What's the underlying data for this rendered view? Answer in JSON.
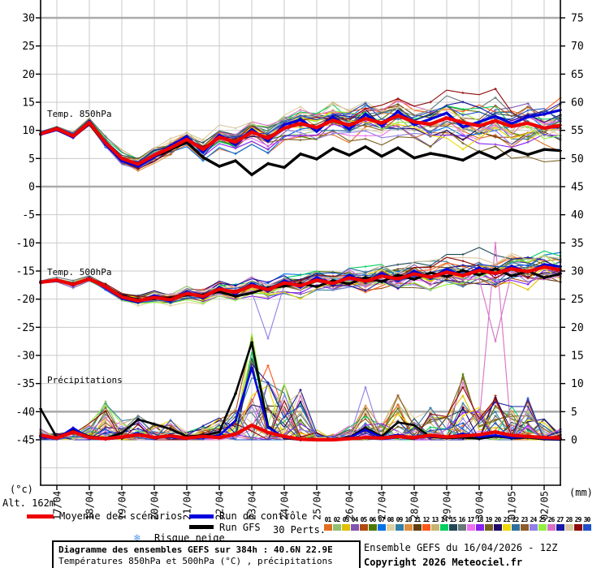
{
  "meta": {
    "altitude_label": "Alt. 162m",
    "footer_box_title": "Diagramme des ensembles GEFS sur 384h : 40.6N 22.9E",
    "footer_box_subtitle": "Températures 850hPa et 500hPa (°C) , précipitations (mm)",
    "footer_run_info": "Ensemble GEFS du 16/04/2026 - 12Z",
    "footer_copyright": "Copyright 2026 Meteociel.fr"
  },
  "panels": {
    "temp850_label": "Temp. 850hPa",
    "temp500_label": "Temp. 500hPa",
    "precip_label": "Précipitations"
  },
  "axes": {
    "left_unit": "(°c)",
    "right_unit": "(mm)"
  },
  "legend": {
    "mean_label": "Moyenne des scénarios",
    "control_label": "Run de contrôle",
    "gfs_label": "Run GFS",
    "perts_label": "30 Perts.",
    "snow_label": "Risque neige",
    "snow_icon": "❄",
    "mean_color": "#ee0000",
    "control_color": "#0000dd",
    "gfs_color": "#000000"
  },
  "perturbations": {
    "numbers": [
      "01",
      "02",
      "03",
      "04",
      "05",
      "06",
      "07",
      "08",
      "09",
      "10",
      "11",
      "12",
      "13",
      "14",
      "15",
      "16",
      "17",
      "18",
      "19",
      "20",
      "21",
      "22",
      "23",
      "24",
      "25",
      "26",
      "27",
      "28",
      "29",
      "30"
    ],
    "colors": [
      "#e07020",
      "#90c070",
      "#e0c000",
      "#8055b0",
      "#b04a10",
      "#507800",
      "#0070e8",
      "#e0d0a0",
      "#3080a8",
      "#e09040",
      "#604010",
      "#ff5818",
      "#c8b470",
      "#00d060",
      "#204858",
      "#667878",
      "#ee70ee",
      "#8820f0",
      "#786020",
      "#200868",
      "#eed800",
      "#3070a0",
      "#905c28",
      "#9080e8",
      "#90f040",
      "#d870c8",
      "#1818a8",
      "#d8c8a0",
      "#900808",
      "#2050c8"
    ]
  },
  "chart_data": {
    "type": "line",
    "title": "Diagramme des ensembles GEFS sur 384h : 40.6N 22.9E",
    "x_hours_step": 12,
    "x_hours_max": 384,
    "x_tick_labels": [
      "17/04",
      "18/04",
      "19/04",
      "20/04",
      "21/04",
      "22/04",
      "23/04",
      "24/04",
      "25/04",
      "26/04",
      "27/04",
      "28/04",
      "29/04",
      "30/04",
      "01/05",
      "02/05"
    ],
    "left_axis": {
      "label": "(°c)",
      "ticks": [
        30,
        25,
        20,
        15,
        10,
        5,
        0,
        -5,
        -10,
        -15,
        -20,
        -25,
        -30,
        -35,
        -40,
        -45
      ],
      "range": [
        -52,
        30
      ]
    },
    "right_axis": {
      "label": "(mm)",
      "ticks": [
        75,
        70,
        65,
        60,
        55,
        50,
        45,
        40,
        35,
        30,
        25,
        20,
        15,
        10,
        5,
        0
      ],
      "range": [
        0,
        75
      ]
    },
    "grid": {
      "vertical_every_hours": 24,
      "horizontal_every_units": 5,
      "emphasized_values": [
        30,
        0,
        -40
      ]
    },
    "legend_position": "bottom",
    "series": {
      "mean_850": [
        9.4,
        10.3,
        9.0,
        11.4,
        7.8,
        5.0,
        4.0,
        5.6,
        6.9,
        8.4,
        6.6,
        8.8,
        7.9,
        9.7,
        8.6,
        10.4,
        11.2,
        10.5,
        11.8,
        10.9,
        12.1,
        11.3,
        12.6,
        11.5,
        11.1,
        12.2,
        11.4,
        10.8,
        11.7,
        10.7,
        11.3,
        10.4,
        10.9
      ],
      "control_850": [
        9.3,
        10.1,
        8.8,
        11.6,
        7.5,
        4.6,
        3.6,
        5.2,
        7.3,
        8.9,
        6.1,
        9.2,
        7.4,
        10.2,
        8.1,
        11.0,
        11.9,
        9.8,
        12.4,
        10.2,
        12.9,
        10.8,
        13.4,
        11.0,
        12.0,
        13.1,
        10.6,
        11.5,
        12.5,
        11.2,
        12.4,
        12.9,
        13.6
      ],
      "gfs_850": [
        9.4,
        10.4,
        8.9,
        11.2,
        7.6,
        4.8,
        3.9,
        5.3,
        6.6,
        7.9,
        5.2,
        3.6,
        4.6,
        2.1,
        4.1,
        3.4,
        5.8,
        4.9,
        6.8,
        5.6,
        7.1,
        5.4,
        6.9,
        5.1,
        5.9,
        5.4,
        4.7,
        6.2,
        5.0,
        6.6,
        5.7,
        6.6,
        6.4
      ],
      "mean_500": [
        -17.0,
        -16.6,
        -17.4,
        -16.4,
        -17.8,
        -19.6,
        -20.3,
        -19.7,
        -20.1,
        -19.0,
        -19.5,
        -18.2,
        -18.8,
        -17.6,
        -18.3,
        -17.1,
        -17.6,
        -16.6,
        -17.2,
        -16.2,
        -16.8,
        -15.9,
        -16.4,
        -15.5,
        -16.1,
        -15.2,
        -15.8,
        -14.9,
        -15.4,
        -14.6,
        -15.1,
        -14.3,
        -14.8
      ],
      "control_500": [
        -17.1,
        -16.5,
        -17.6,
        -16.2,
        -18.0,
        -19.9,
        -20.6,
        -19.4,
        -20.4,
        -18.7,
        -19.8,
        -17.9,
        -19.1,
        -17.2,
        -18.6,
        -16.7,
        -17.9,
        -16.1,
        -17.5,
        -15.7,
        -17.0,
        -15.4,
        -16.6,
        -15.0,
        -16.3,
        -14.7,
        -15.9,
        -14.4,
        -15.6,
        -14.1,
        -15.2,
        -13.8,
        -14.2
      ],
      "gfs_500": [
        -17.0,
        -16.7,
        -17.3,
        -16.5,
        -17.7,
        -19.4,
        -20.1,
        -19.9,
        -19.8,
        -19.3,
        -19.2,
        -18.7,
        -19.5,
        -18.9,
        -18.0,
        -17.7,
        -17.2,
        -17.8,
        -16.7,
        -17.3,
        -16.1,
        -16.9,
        -15.7,
        -16.5,
        -15.3,
        -16.0,
        -14.9,
        -15.7,
        -14.6,
        -15.9,
        -15.0,
        -16.2,
        -15.5
      ],
      "mean_precip": [
        0.8,
        0.3,
        1.4,
        0.4,
        0.2,
        0.5,
        0.9,
        0.4,
        0.7,
        0.3,
        0.6,
        0.4,
        1.0,
        2.6,
        1.3,
        0.6,
        0.1,
        0.0,
        0.0,
        0.2,
        0.4,
        0.3,
        0.6,
        0.4,
        0.8,
        0.5,
        0.7,
        0.9,
        1.4,
        0.8,
        0.6,
        0.4,
        0.3
      ],
      "control_precip": [
        0.5,
        0.2,
        2.1,
        0.3,
        0.1,
        0.4,
        1.2,
        0.3,
        0.5,
        0.2,
        0.4,
        0.8,
        3.4,
        12.8,
        2.2,
        0.4,
        0.0,
        0.0,
        0.1,
        0.3,
        1.8,
        0.4,
        0.9,
        0.3,
        0.6,
        0.4,
        1.1,
        0.5,
        0.8,
        0.4,
        0.5,
        0.2,
        0.1
      ],
      "gfs_precip": [
        5.5,
        0.4,
        1.8,
        0.6,
        0.3,
        1.2,
        3.6,
        2.8,
        1.9,
        0.6,
        0.8,
        1.4,
        8.2,
        17.3,
        2.4,
        0.3,
        0.0,
        0.0,
        0.0,
        0.4,
        2.1,
        0.6,
        3.1,
        2.6,
        0.5,
        0.3,
        0.4,
        0.2,
        0.6,
        0.3,
        0.4,
        0.1,
        0.0
      ],
      "spread_850": [
        0.5,
        0.6,
        0.7,
        0.7,
        0.9,
        1.2,
        1.6,
        1.5,
        1.6,
        1.7,
        1.9,
        1.8,
        2.0,
        2.2,
        2.4,
        2.6,
        2.8,
        3.0,
        3.0,
        3.2,
        3.3,
        3.4,
        3.5,
        3.6,
        3.8,
        3.9,
        4.0,
        4.2,
        4.3,
        4.4,
        4.5,
        4.6,
        4.7
      ],
      "spread_500": [
        0.4,
        0.5,
        0.6,
        0.6,
        0.8,
        1.0,
        1.3,
        1.3,
        1.4,
        1.5,
        1.6,
        1.6,
        1.8,
        2.0,
        2.1,
        2.2,
        2.3,
        2.4,
        2.4,
        2.5,
        2.6,
        2.6,
        2.7,
        2.8,
        2.8,
        2.9,
        3.0,
        3.0,
        3.1,
        3.1,
        3.2,
        3.2,
        3.3
      ],
      "precip_envelope": [
        2.0,
        1.2,
        1.5,
        3.0,
        7.0,
        3.5,
        4.5,
        3.0,
        3.5,
        1.5,
        2.5,
        4.0,
        6.0,
        20.0,
        14.0,
        11.0,
        9.0,
        2.0,
        1.0,
        2.5,
        9.5,
        3.0,
        8.0,
        4.0,
        6.0,
        4.5,
        12.0,
        6.0,
        8.0,
        6.0,
        8.0,
        4.0,
        2.0
      ]
    },
    "outliers": [
      {
        "member": 26,
        "panel": "precip",
        "index": 28,
        "value": 35.0
      },
      {
        "member": 26,
        "panel": "t500",
        "index": 28,
        "value": -27.5
      },
      {
        "member": 24,
        "panel": "t500",
        "index": 14,
        "value": -27.0
      }
    ]
  }
}
